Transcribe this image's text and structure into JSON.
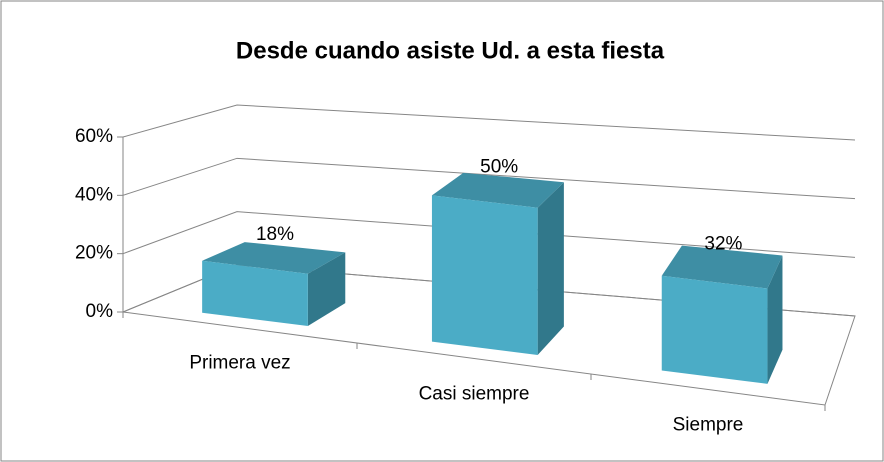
{
  "chart_data": {
    "type": "bar3d",
    "title": "Desde cuando asiste Ud. a esta fiesta",
    "categories": [
      "Primera vez",
      "Casi siempre",
      "Siempre"
    ],
    "values": [
      18,
      50,
      32
    ],
    "value_labels": [
      "18%",
      "50%",
      "32%"
    ],
    "color": "#4bacc6",
    "ylim": [
      0,
      60
    ],
    "yticks": [
      {
        "value": 0,
        "label": "0%"
      },
      {
        "value": 20,
        "label": "20%"
      },
      {
        "value": 40,
        "label": "40%"
      },
      {
        "value": 60,
        "label": "60%"
      }
    ],
    "grid": true
  }
}
